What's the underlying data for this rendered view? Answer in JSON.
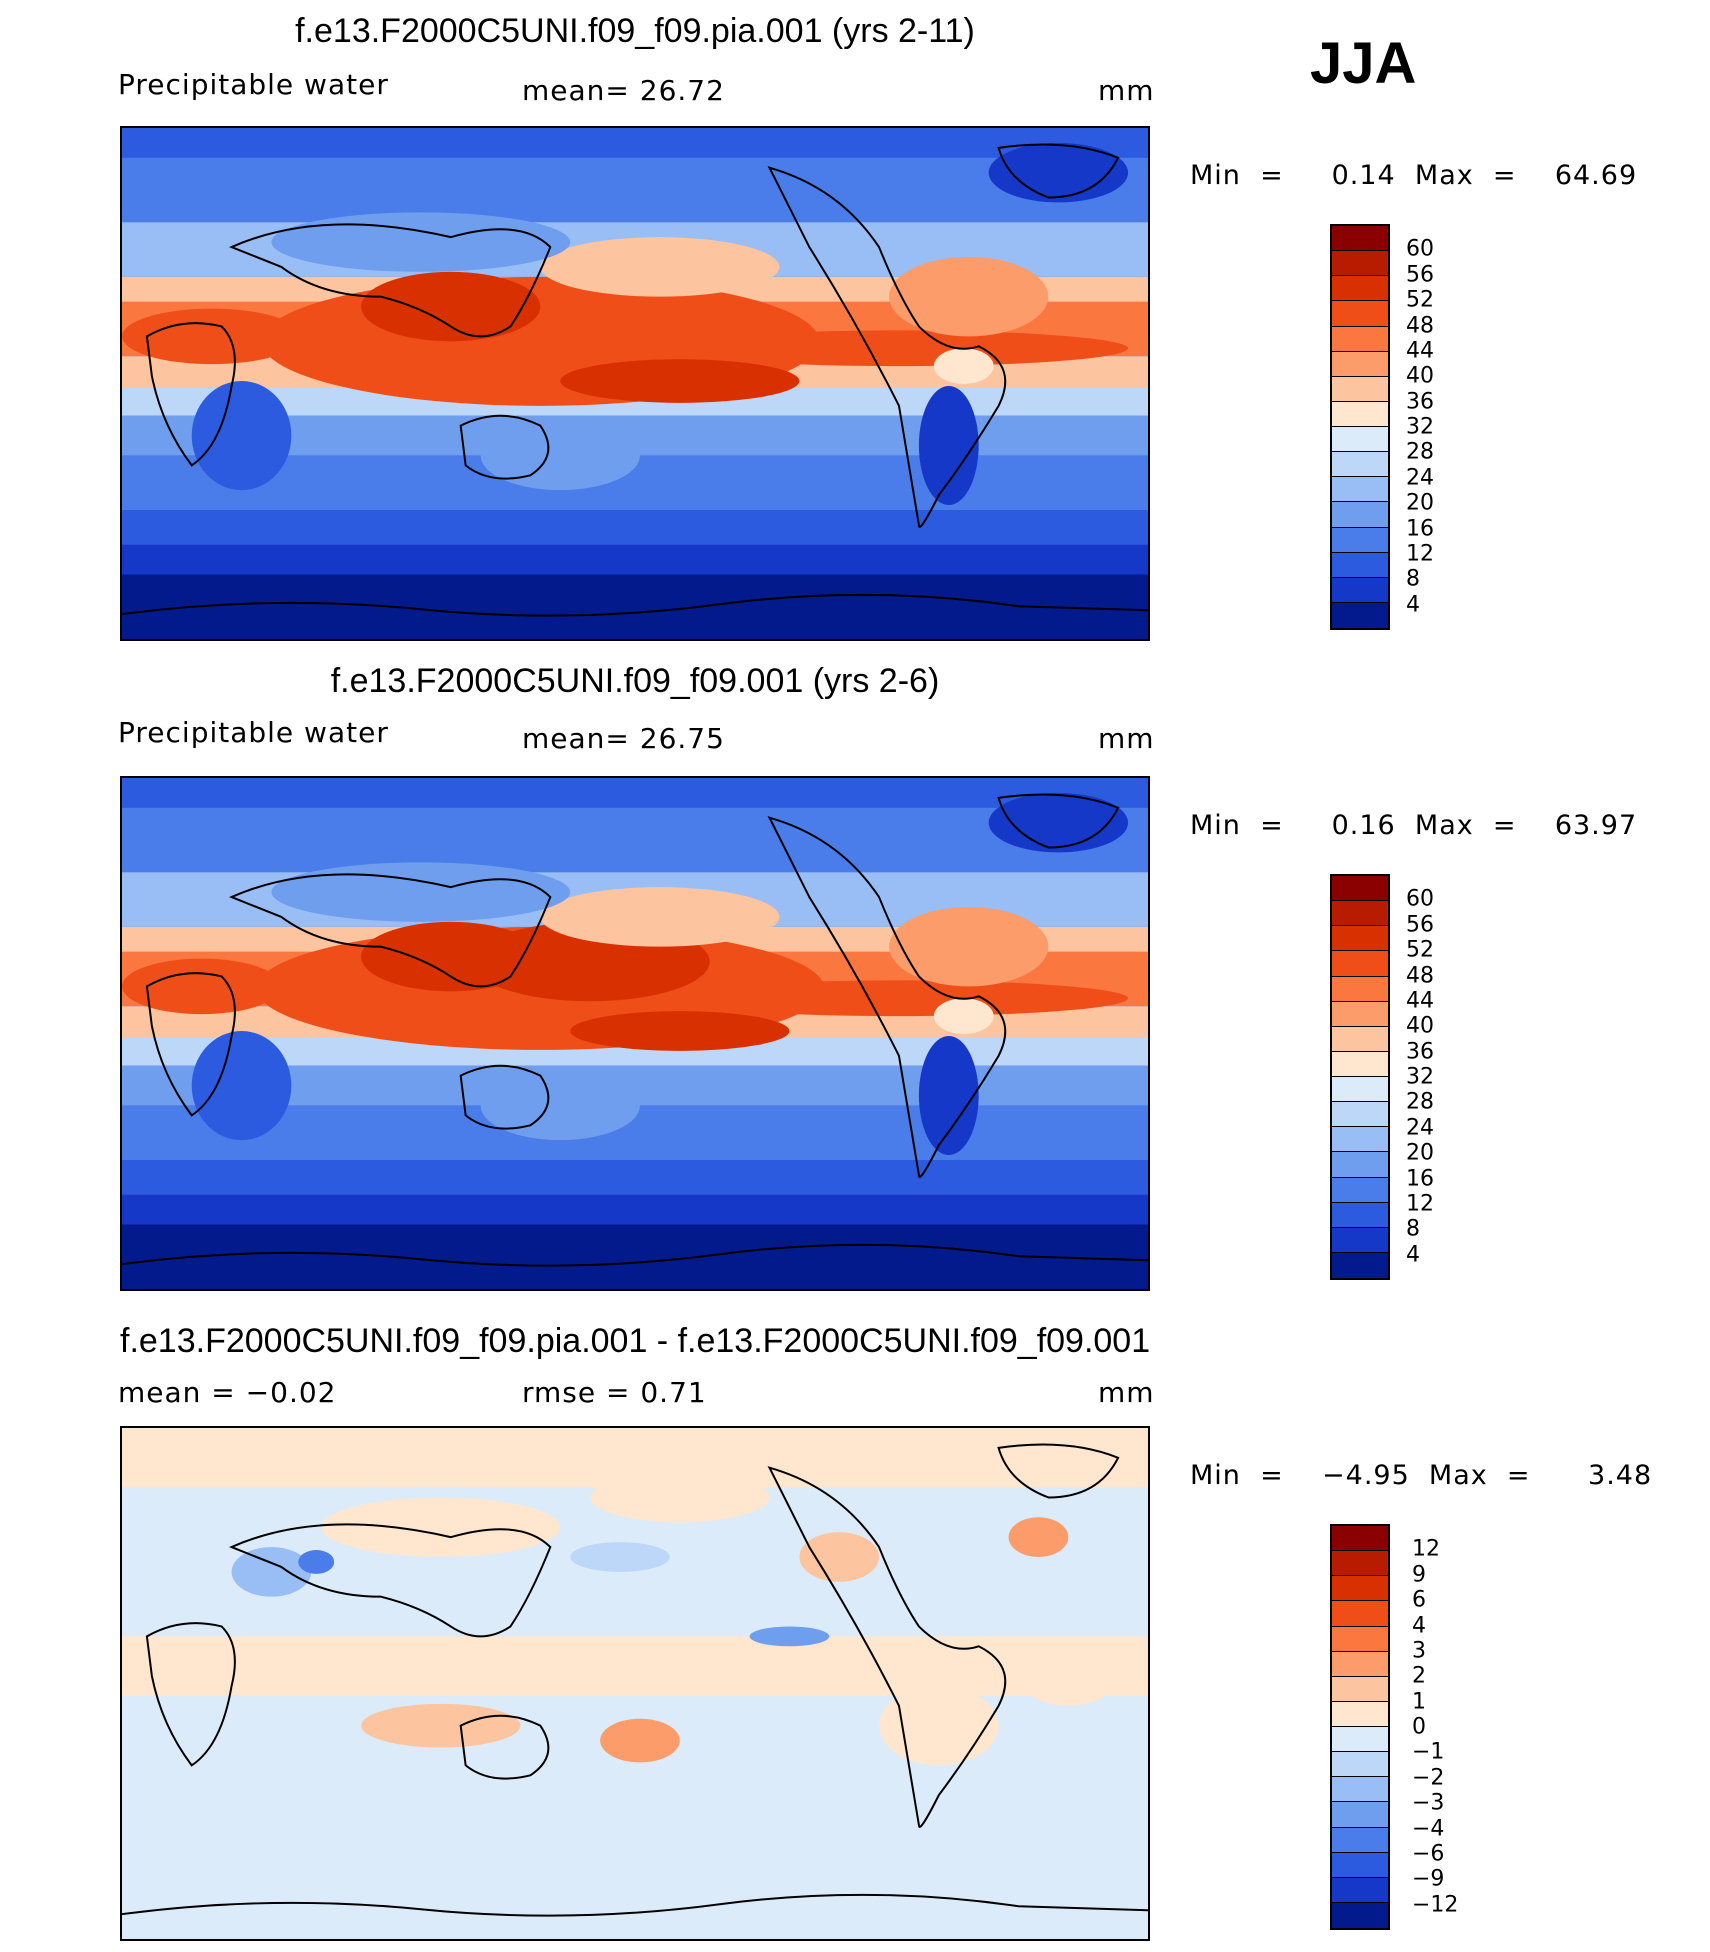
{
  "season": "JJA",
  "panels": [
    {
      "title": "f.e13.F2000C5UNI.f09_f09.pia.001 (yrs 2-11)",
      "left_label": "Precipitable  water",
      "center_label": "mean=   26.72",
      "units": "mm",
      "minmax": "Min  =     0.14  Max  =    64.69",
      "colorbar_levels": [
        "60",
        "56",
        "52",
        "48",
        "44",
        "40",
        "36",
        "32",
        "28",
        "24",
        "20",
        "16",
        "12",
        "8",
        "4"
      ],
      "colorbar_colors": [
        "#8B0000",
        "#B71C00",
        "#D93000",
        "#F04E18",
        "#FA7840",
        "#FB9C6A",
        "#FDC4A0",
        "#FEE6CF",
        "#DCEBFA",
        "#BDD7F8",
        "#98BEF5",
        "#6F9EEF",
        "#4A7CEA",
        "#2C5BE0",
        "#1638C8",
        "#021A8C"
      ],
      "map_type": "absolute"
    },
    {
      "title": "f.e13.F2000C5UNI.f09_f09.001 (yrs 2-6)",
      "left_label": "Precipitable  water",
      "center_label": "mean=   26.75",
      "units": "mm",
      "minmax": "Min  =     0.16  Max  =    63.97",
      "colorbar_levels": [
        "60",
        "56",
        "52",
        "48",
        "44",
        "40",
        "36",
        "32",
        "28",
        "24",
        "20",
        "16",
        "12",
        "8",
        "4"
      ],
      "colorbar_colors": [
        "#8B0000",
        "#B71C00",
        "#D93000",
        "#F04E18",
        "#FA7840",
        "#FB9C6A",
        "#FDC4A0",
        "#FEE6CF",
        "#DCEBFA",
        "#BDD7F8",
        "#98BEF5",
        "#6F9EEF",
        "#4A7CEA",
        "#2C5BE0",
        "#1638C8",
        "#021A8C"
      ],
      "map_type": "absolute"
    },
    {
      "title": "f.e13.F2000C5UNI.f09_f09.pia.001 - f.e13.F2000C5UNI.f09_f09.001",
      "left_label": "mean  =    −0.02",
      "center_label": "rmse  =      0.71",
      "units": "mm",
      "minmax": "Min  =    −4.95  Max  =      3.48",
      "colorbar_levels": [
        "12",
        "9",
        "6",
        "4",
        "3",
        "2",
        "1",
        "0",
        "−1",
        "−2",
        "−3",
        "−4",
        "−6",
        "−9",
        "−12"
      ],
      "colorbar_colors": [
        "#8B0000",
        "#B71C00",
        "#D93000",
        "#F04E18",
        "#FA7840",
        "#FB9C6A",
        "#FDC4A0",
        "#FEE6CF",
        "#DCEBFA",
        "#BDD7F8",
        "#98BEF5",
        "#6F9EEF",
        "#4A7CEA",
        "#2C5BE0",
        "#1638C8",
        "#021A8C"
      ],
      "map_type": "difference"
    }
  ]
}
